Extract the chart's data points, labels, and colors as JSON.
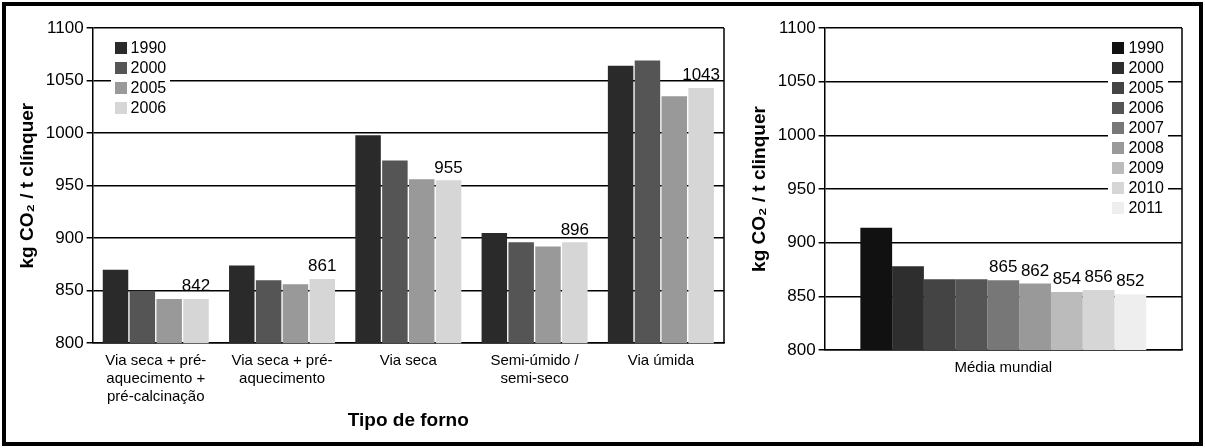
{
  "chart_data": [
    {
      "type": "bar",
      "xlabel": "Tipo de forno",
      "ylabel": "kg CO₂ / t clínquer",
      "categories": [
        "Via seca + pré-aquecimento + pré-calcinação",
        "Via seca + pré-aquecimento",
        "Via seca",
        "Semi-úmido / semi-seco",
        "Via úmida"
      ],
      "ylim": [
        800,
        1100
      ],
      "yticks": [
        800,
        850,
        900,
        950,
        1000,
        1050,
        1100
      ],
      "grid": "y",
      "legend": "top left",
      "series": [
        {
          "name": "1990",
          "color": "#2a2a2a",
          "values": [
            870,
            874,
            998,
            905,
            1064
          ]
        },
        {
          "name": "2000",
          "color": "#555555",
          "values": [
            850,
            860,
            974,
            896,
            1069
          ]
        },
        {
          "name": "2005",
          "color": "#999999",
          "values": [
            842,
            856,
            956,
            892,
            1035
          ]
        },
        {
          "name": "2006",
          "color": "#d6d6d6",
          "values": [
            842,
            861,
            955,
            896,
            1043
          ],
          "value_labels": [
            "842",
            "861",
            "955",
            "896",
            "1043"
          ]
        }
      ]
    },
    {
      "type": "bar",
      "ylabel": "kg CO₂ / t clinquer",
      "categories": [
        "Média mundial"
      ],
      "ylim": [
        800,
        1100
      ],
      "yticks": [
        800,
        850,
        900,
        950,
        1000,
        1050,
        1100
      ],
      "grid": "y",
      "legend": "top right",
      "series": [
        {
          "name": "1990",
          "color": "#111111",
          "values": [
            914
          ]
        },
        {
          "name": "2000",
          "color": "#2e2e2e",
          "values": [
            878
          ]
        },
        {
          "name": "2005",
          "color": "#444444",
          "values": [
            866
          ]
        },
        {
          "name": "2006",
          "color": "#555555",
          "values": [
            866
          ]
        },
        {
          "name": "2007",
          "color": "#777777",
          "values": [
            865
          ],
          "value_labels": [
            "865"
          ]
        },
        {
          "name": "2008",
          "color": "#999999",
          "values": [
            862
          ],
          "value_labels": [
            "862"
          ]
        },
        {
          "name": "2009",
          "color": "#bbbbbb",
          "values": [
            854
          ],
          "value_labels": [
            "854"
          ]
        },
        {
          "name": "2010",
          "color": "#d6d6d6",
          "values": [
            856
          ],
          "value_labels": [
            "856"
          ]
        },
        {
          "name": "2011",
          "color": "#eeeeee",
          "values": [
            852
          ],
          "value_labels": [
            "852"
          ]
        }
      ]
    }
  ]
}
